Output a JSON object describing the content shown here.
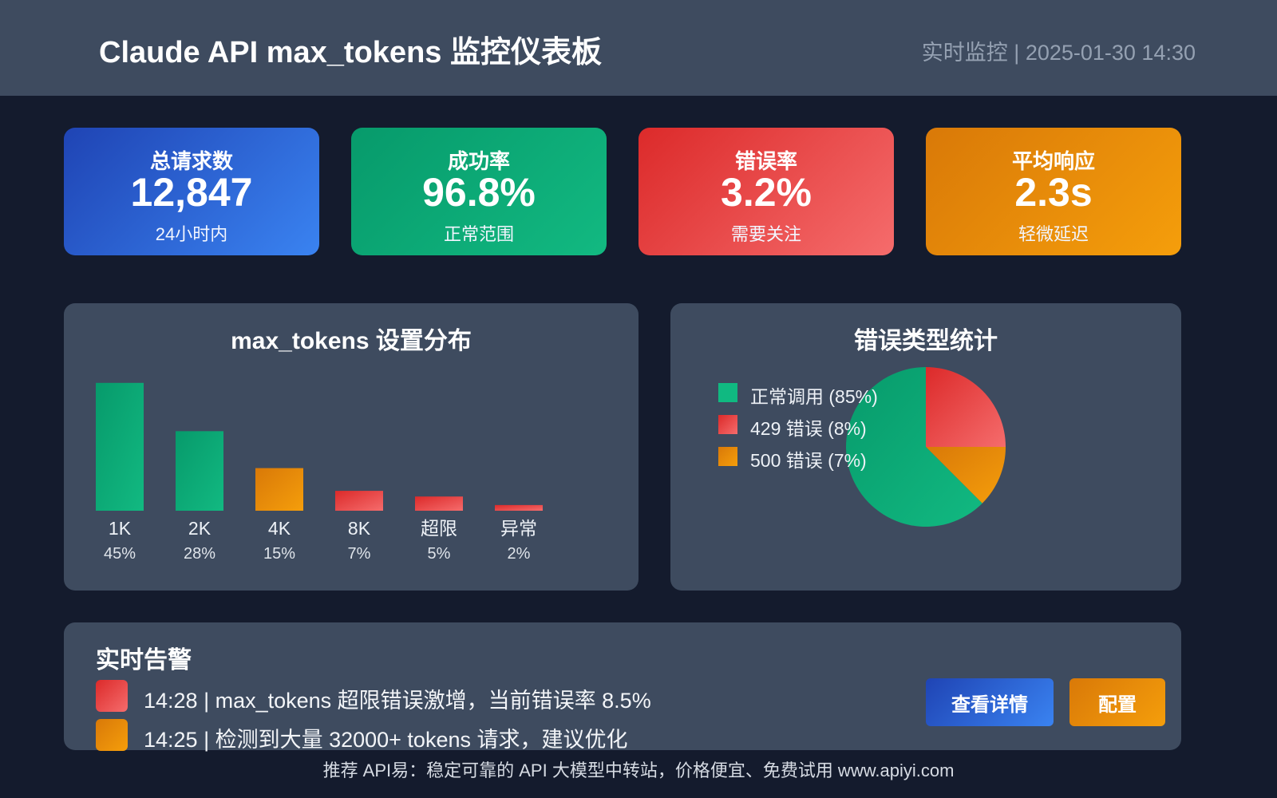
{
  "header": {
    "title": "Claude API max_tokens 监控仪表板",
    "status": "实时监控 | 2025-01-30 14:30"
  },
  "stats": [
    {
      "label": "总请求数",
      "value": "12,847",
      "sub": "24小时内"
    },
    {
      "label": "成功率",
      "value": "96.8%",
      "sub": "正常范围"
    },
    {
      "label": "错误率",
      "value": "3.2%",
      "sub": "需要关注"
    },
    {
      "label": "平均响应",
      "value": "2.3s",
      "sub": "轻微延迟"
    }
  ],
  "colors": {
    "green": "#10b981",
    "red": "#ef4444",
    "orange": "#f59e0b",
    "blue": "#3b82f6"
  },
  "chart_data": [
    {
      "type": "bar",
      "title": "max_tokens 设置分布",
      "categories": [
        "1K",
        "2K",
        "4K",
        "8K",
        "超限",
        "异常"
      ],
      "values": [
        45,
        28,
        15,
        7,
        5,
        2
      ],
      "value_labels": [
        "45%",
        "28%",
        "15%",
        "7%",
        "5%",
        "2%"
      ],
      "bar_colors": [
        "green",
        "green",
        "orange",
        "red",
        "red",
        "red"
      ]
    },
    {
      "type": "pie",
      "title": "错误类型统计",
      "slices": [
        {
          "label": "正常调用 (85%)",
          "value": 85,
          "color": "green"
        },
        {
          "label": "429 错误 (8%)",
          "value": 8,
          "color": "red"
        },
        {
          "label": "500 错误 (7%)",
          "value": 7,
          "color": "orange"
        }
      ]
    }
  ],
  "alerts": {
    "title": "实时告警",
    "items": [
      {
        "text": "14:28 | max_tokens 超限错误激增，当前错误率 8.5%",
        "level": "red"
      },
      {
        "text": "14:25 | 检测到大量 32000+ tokens 请求，建议优化",
        "level": "orange"
      }
    ],
    "details_label": "查看详情",
    "config_label": "配置"
  },
  "footer": "推荐 API易：稳定可靠的 API 大模型中转站，价格便宜、免费试用 www.apiyi.com"
}
